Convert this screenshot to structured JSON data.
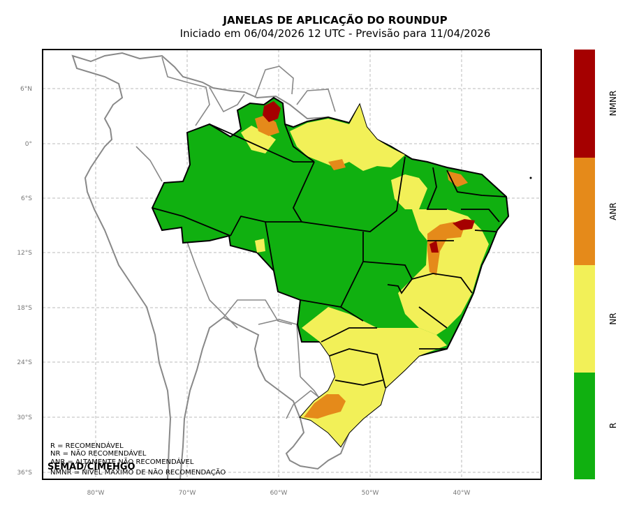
{
  "title": "JANELAS DE APLICAÇÃO DO ROUNDUP",
  "subtitle": "Iniciado em 06/04/2026 12 UTC - Previsão para 11/04/2026",
  "lat_ticks": [
    "6°N",
    "0°",
    "6°S",
    "12°S",
    "18°S",
    "24°S",
    "30°S",
    "36°S"
  ],
  "lon_ticks": [
    "80°W",
    "70°W",
    "60°W",
    "50°W",
    "40°W"
  ],
  "legend": [
    "R = RECOMENDÁVEL",
    "NR = NÃO RECOMENDÁVEL",
    "ANR = ALTAMENTE NÃO RECOMENDÁVEL",
    "NMNR = NÍVEL MÁXIMO DE NÃO RECOMENDAÇÃO"
  ],
  "credit": "SEMAD/CIMEHGO",
  "colorbar": [
    {
      "label": "NMNR",
      "color": "#a50000"
    },
    {
      "label": "ANR",
      "color": "#e58a1a"
    },
    {
      "label": "NR",
      "color": "#f2f058"
    },
    {
      "label": "R",
      "color": "#10b010"
    }
  ]
}
